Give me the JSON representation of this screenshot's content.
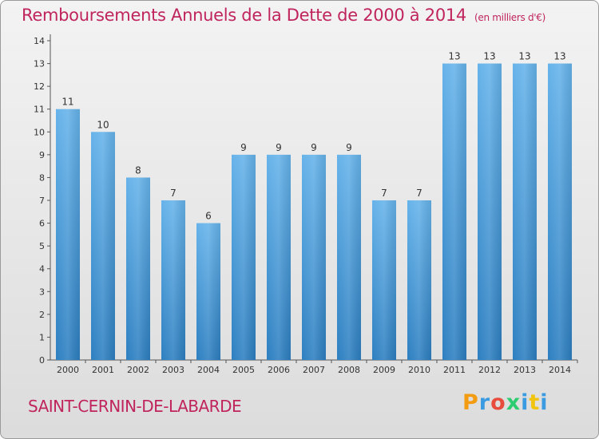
{
  "header": {
    "title": "Remboursements Annuels de la Dette de 2000 à 2014",
    "unit": "(en milliers d'€)"
  },
  "footer": {
    "commune": "SAINT-CERNIN-DE-LABARDE",
    "logo": "Proxiti",
    "logo_colors": [
      "#f39c12",
      "#3b9be0",
      "#e74c3c",
      "#2ecc71",
      "#3b9be0",
      "#f1c40f",
      "#3b9be0"
    ]
  },
  "colors": {
    "bar_light": "#66b3ea",
    "bar_dark": "#2d7fc1",
    "title": "#c0245d",
    "label": "#333333"
  },
  "chart_data": {
    "type": "bar",
    "categories": [
      "2000",
      "2001",
      "2002",
      "2003",
      "2004",
      "2005",
      "2006",
      "2007",
      "2008",
      "2009",
      "2010",
      "2011",
      "2012",
      "2013",
      "2014"
    ],
    "values": [
      11,
      10,
      8,
      7,
      6,
      9,
      9,
      9,
      9,
      7,
      7,
      13,
      13,
      13,
      13
    ],
    "yticks": [
      0,
      1,
      2,
      3,
      4,
      5,
      6,
      7,
      8,
      9,
      10,
      11,
      12,
      13,
      14
    ],
    "ytick_labels": [
      "0",
      "1",
      "2",
      "3",
      "4",
      "5",
      "6",
      "7",
      "8",
      "9",
      "10",
      "11",
      "12",
      "13",
      "14"
    ],
    "ylim": [
      0,
      14
    ],
    "title": "Remboursements Annuels de la Dette de 2000 à 2014",
    "xlabel": "",
    "ylabel": "",
    "grid": false
  }
}
